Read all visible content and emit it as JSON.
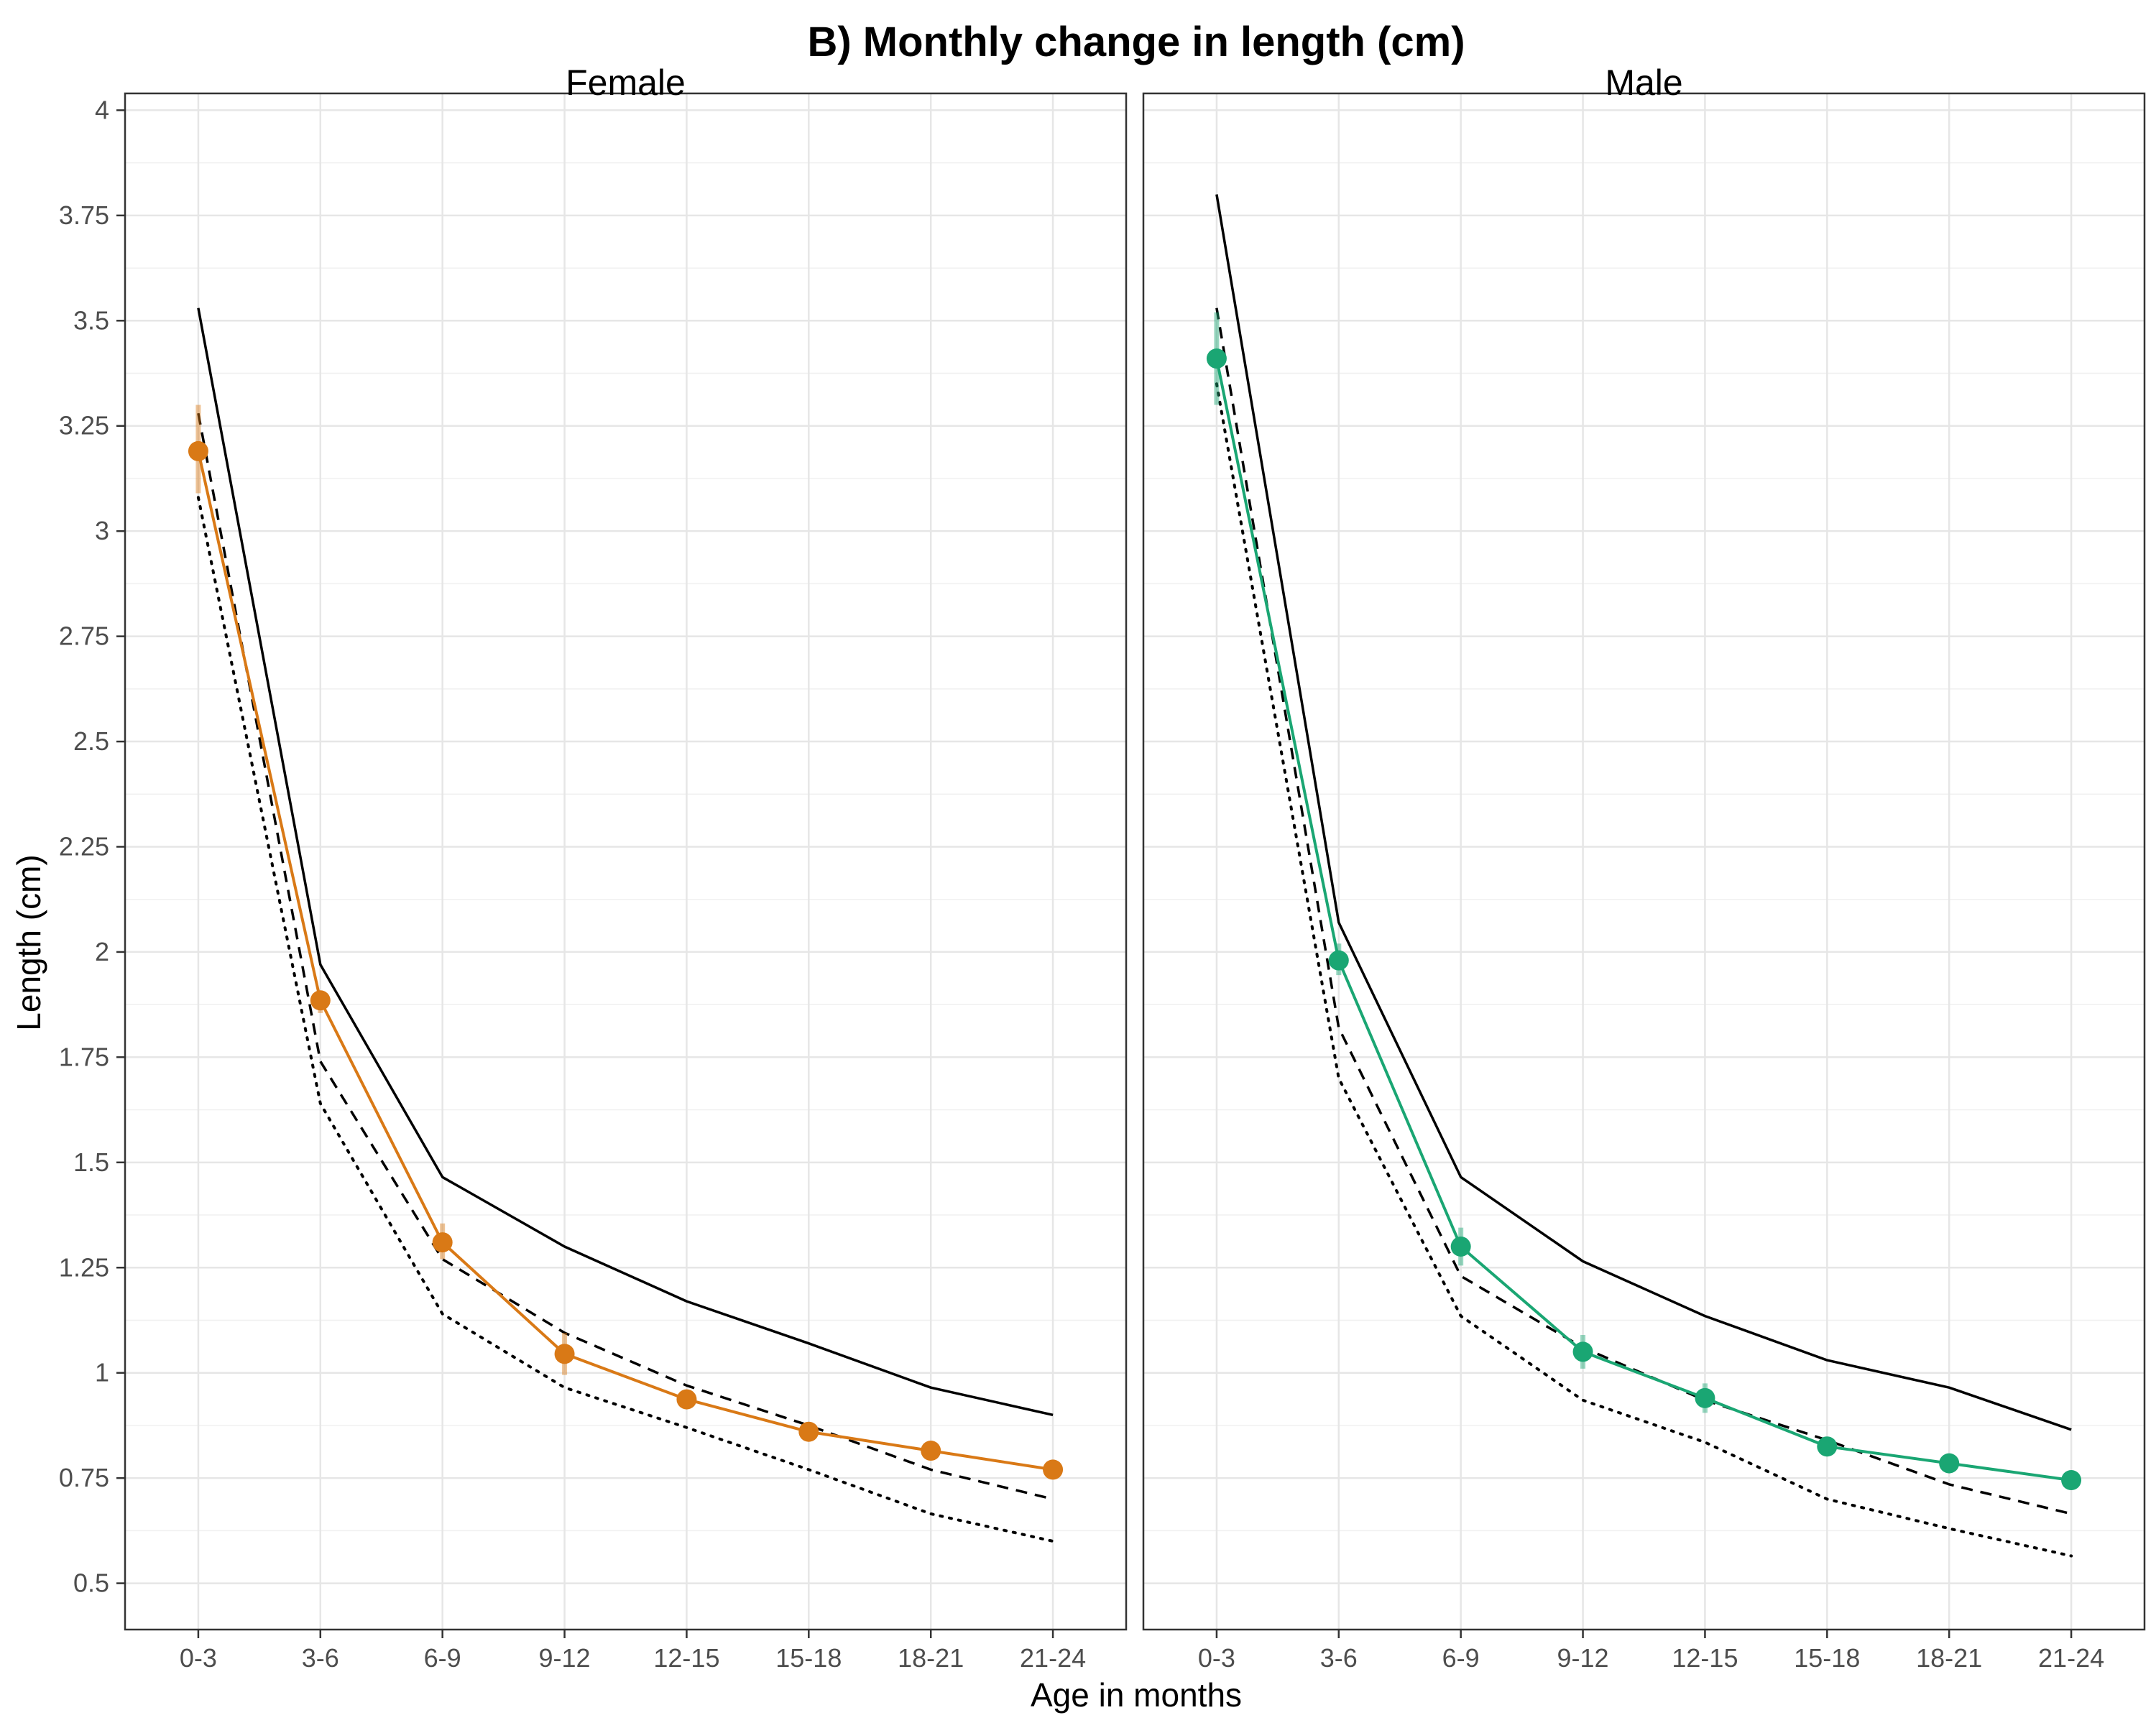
{
  "chart_data": {
    "type": "line",
    "title": "B) Monthly change in length (cm)",
    "xlabel": "Age in months",
    "ylabel": "Length (cm)",
    "ylim": [
      0.39,
      4.04
    ],
    "y_ticks": [
      0.5,
      0.75,
      1,
      1.25,
      1.5,
      1.75,
      2,
      2.25,
      2.5,
      2.75,
      3,
      3.25,
      3.5,
      3.75,
      4
    ],
    "y_tick_labels": [
      "0.5",
      "0.75",
      "1",
      "1.25",
      "1.5",
      "1.75",
      "2",
      "2.25",
      "2.5",
      "2.75",
      "3",
      "3.25",
      "3.5",
      "3.75",
      "4"
    ],
    "categories": [
      "0-3",
      "3-6",
      "6-9",
      "9-12",
      "12-15",
      "15-18",
      "18-21",
      "21-24"
    ],
    "grid": true,
    "legend": "none",
    "panels": [
      {
        "name": "Female",
        "color": "#d97916",
        "observed": [
          3.19,
          1.885,
          1.31,
          1.045,
          0.937,
          0.86,
          0.815,
          0.77
        ],
        "ci_low": [
          3.09,
          1.855,
          1.27,
          0.995,
          0.92,
          0.845,
          0.795,
          0.76
        ],
        "ci_high": [
          3.3,
          1.905,
          1.355,
          1.095,
          0.957,
          0.875,
          0.835,
          0.78
        ],
        "ref_solid": [
          3.53,
          1.97,
          1.465,
          1.3,
          1.17,
          1.07,
          0.965,
          0.9
        ],
        "ref_dashed": [
          3.28,
          1.74,
          1.27,
          1.095,
          0.97,
          0.875,
          0.77,
          0.7
        ],
        "ref_dotted": [
          3.08,
          1.64,
          1.14,
          0.965,
          0.87,
          0.77,
          0.665,
          0.6
        ]
      },
      {
        "name": "Male",
        "color": "#1aa673",
        "observed": [
          3.41,
          1.98,
          1.3,
          1.05,
          0.94,
          0.825,
          0.785,
          0.745
        ],
        "ci_low": [
          3.3,
          1.945,
          1.255,
          1.01,
          0.905,
          0.81,
          0.77,
          0.735
        ],
        "ci_high": [
          3.52,
          2.02,
          1.345,
          1.09,
          0.975,
          0.84,
          0.8,
          0.755
        ],
        "ref_solid": [
          3.8,
          2.07,
          1.465,
          1.265,
          1.135,
          1.03,
          0.965,
          0.865
        ],
        "ref_dashed": [
          3.53,
          1.82,
          1.23,
          1.06,
          0.935,
          0.84,
          0.735,
          0.665
        ],
        "ref_dotted": [
          3.35,
          1.7,
          1.135,
          0.935,
          0.835,
          0.7,
          0.63,
          0.565
        ]
      }
    ]
  }
}
